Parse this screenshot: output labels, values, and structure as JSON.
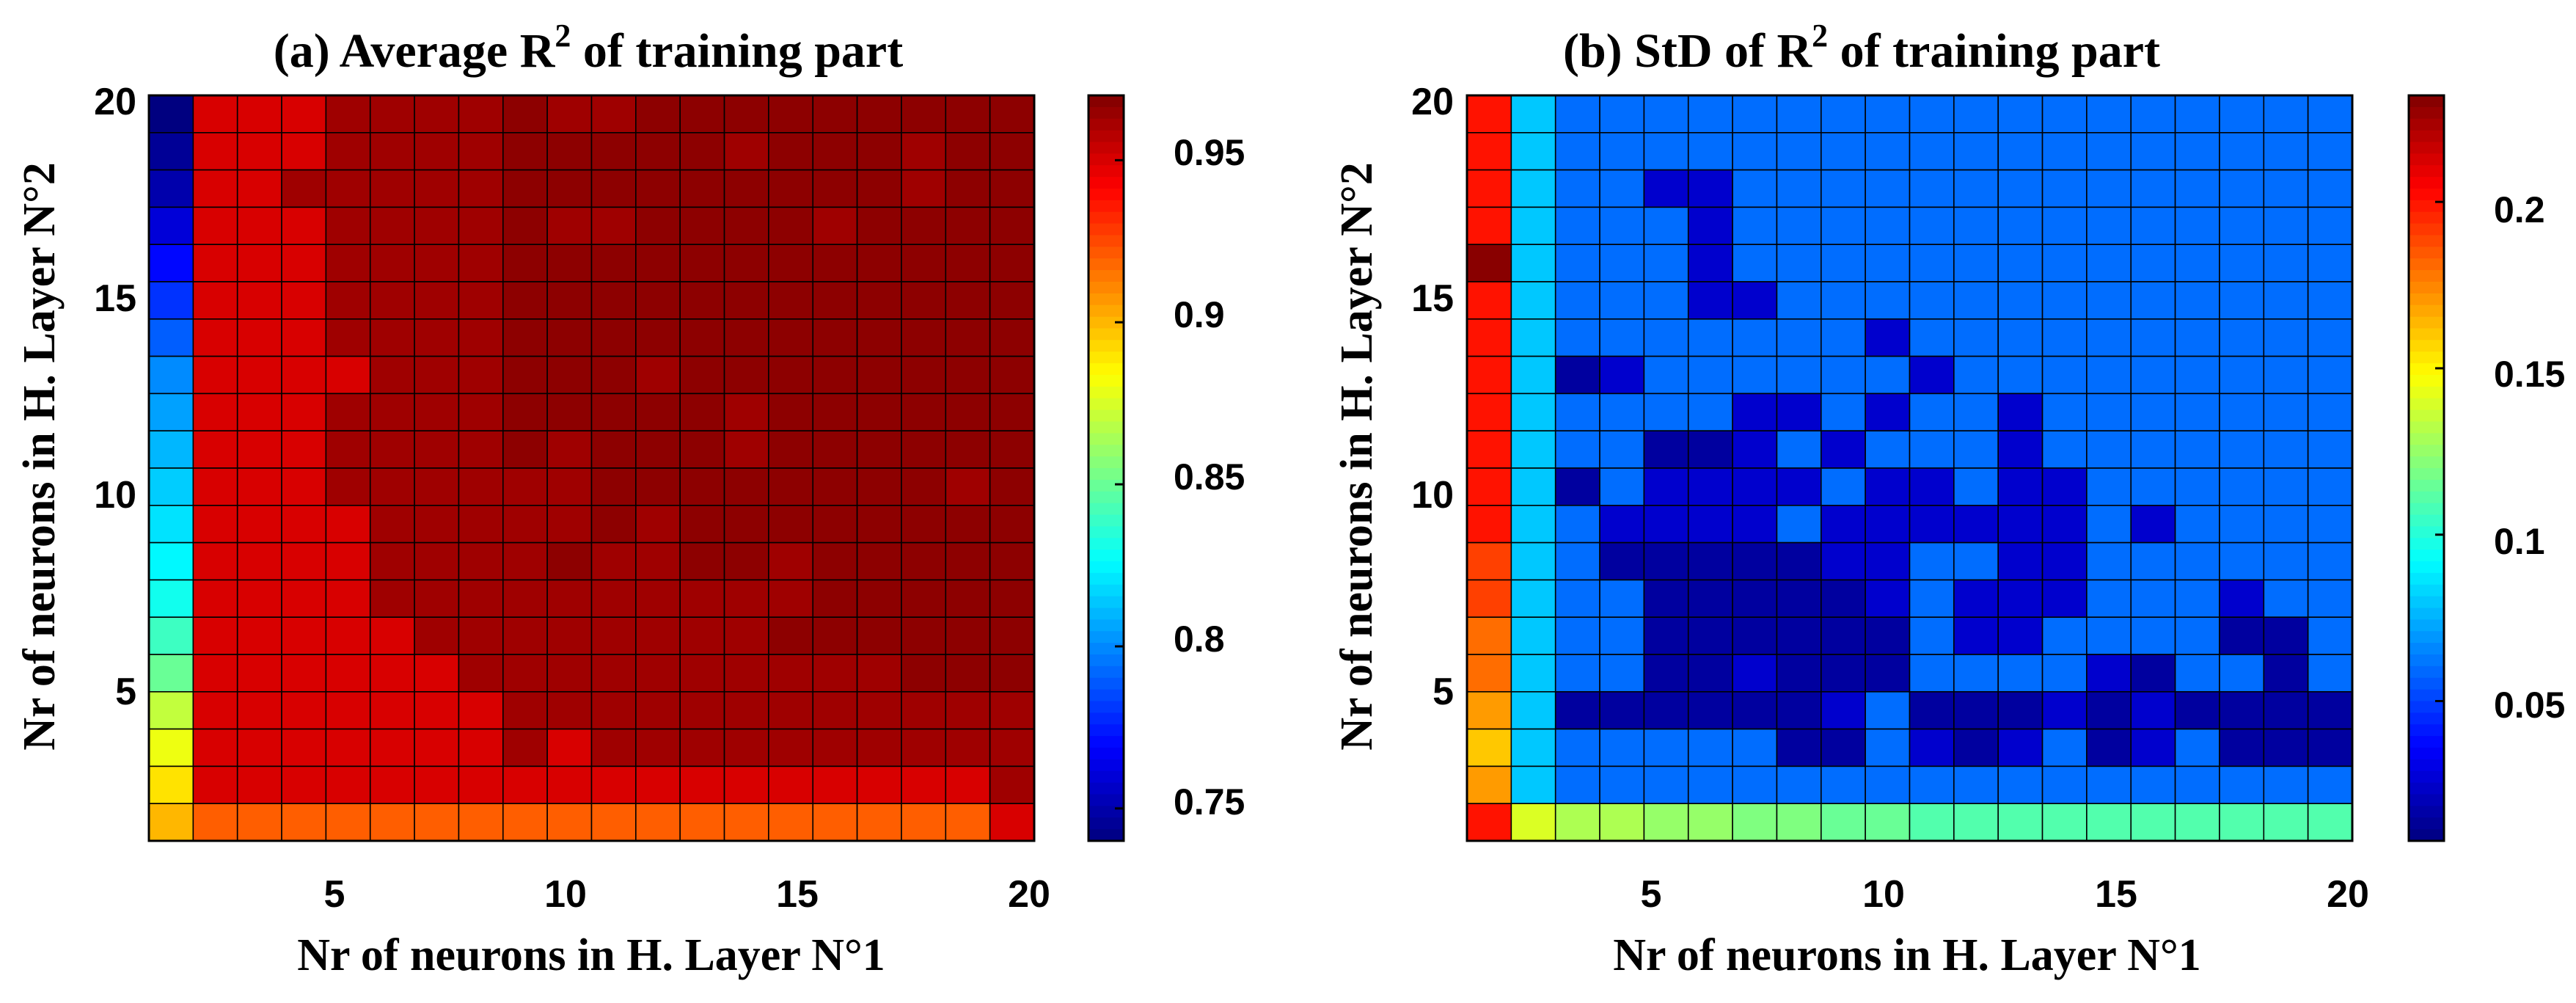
{
  "chart_data": [
    {
      "type": "heatmap",
      "title_main": "(a) Average R",
      "title_sup": "2",
      "title_tail": " of training part",
      "xlabel": "Nr of neurons in H. Layer N°1",
      "ylabel": "Nr of neurons in H. Layer N°2",
      "x_ticks": [
        "5",
        "10",
        "15",
        "20"
      ],
      "y_ticks": [
        "5",
        "10",
        "15",
        "20"
      ],
      "x_range": [
        1,
        20
      ],
      "y_range": [
        1,
        20
      ],
      "grid": true,
      "colormap": "jet",
      "colorbar": {
        "range": [
          0.74,
          0.97
        ],
        "ticks": [
          0.75,
          0.8,
          0.85,
          0.9,
          0.95
        ],
        "tick_labels": [
          "0.75",
          "0.8",
          "0.85",
          "0.9",
          "0.95"
        ]
      },
      "rows_top_to_bottom": [
        [
          0.74,
          0.95,
          0.95,
          0.95,
          0.963,
          0.963,
          0.963,
          0.963,
          0.967,
          0.963,
          0.963,
          0.967,
          0.967,
          0.967,
          0.967,
          0.967,
          0.967,
          0.967,
          0.967,
          0.967
        ],
        [
          0.745,
          0.95,
          0.95,
          0.95,
          0.963,
          0.963,
          0.963,
          0.963,
          0.967,
          0.967,
          0.967,
          0.967,
          0.967,
          0.963,
          0.967,
          0.967,
          0.967,
          0.963,
          0.967,
          0.967
        ],
        [
          0.75,
          0.95,
          0.95,
          0.963,
          0.963,
          0.963,
          0.963,
          0.963,
          0.967,
          0.967,
          0.967,
          0.967,
          0.967,
          0.967,
          0.967,
          0.967,
          0.967,
          0.963,
          0.967,
          0.967
        ],
        [
          0.76,
          0.95,
          0.95,
          0.95,
          0.963,
          0.963,
          0.963,
          0.963,
          0.967,
          0.963,
          0.963,
          0.967,
          0.967,
          0.967,
          0.967,
          0.963,
          0.967,
          0.967,
          0.967,
          0.967
        ],
        [
          0.77,
          0.95,
          0.95,
          0.95,
          0.963,
          0.963,
          0.963,
          0.963,
          0.967,
          0.967,
          0.967,
          0.967,
          0.967,
          0.967,
          0.967,
          0.967,
          0.967,
          0.967,
          0.967,
          0.967
        ],
        [
          0.78,
          0.95,
          0.95,
          0.95,
          0.963,
          0.963,
          0.963,
          0.963,
          0.967,
          0.967,
          0.967,
          0.967,
          0.967,
          0.967,
          0.967,
          0.967,
          0.967,
          0.967,
          0.967,
          0.967
        ],
        [
          0.79,
          0.95,
          0.95,
          0.95,
          0.963,
          0.963,
          0.963,
          0.963,
          0.967,
          0.967,
          0.967,
          0.967,
          0.967,
          0.967,
          0.967,
          0.967,
          0.967,
          0.967,
          0.967,
          0.967
        ],
        [
          0.8,
          0.95,
          0.95,
          0.95,
          0.95,
          0.963,
          0.963,
          0.963,
          0.967,
          0.967,
          0.967,
          0.963,
          0.967,
          0.967,
          0.967,
          0.967,
          0.967,
          0.967,
          0.967,
          0.967
        ],
        [
          0.805,
          0.95,
          0.95,
          0.95,
          0.963,
          0.963,
          0.963,
          0.963,
          0.967,
          0.967,
          0.967,
          0.967,
          0.967,
          0.963,
          0.967,
          0.967,
          0.967,
          0.967,
          0.967,
          0.967
        ],
        [
          0.81,
          0.95,
          0.95,
          0.95,
          0.963,
          0.963,
          0.963,
          0.963,
          0.967,
          0.963,
          0.967,
          0.967,
          0.967,
          0.963,
          0.967,
          0.967,
          0.967,
          0.967,
          0.967,
          0.967
        ],
        [
          0.815,
          0.95,
          0.95,
          0.95,
          0.963,
          0.963,
          0.963,
          0.963,
          0.963,
          0.963,
          0.967,
          0.967,
          0.967,
          0.967,
          0.967,
          0.967,
          0.967,
          0.967,
          0.963,
          0.967
        ],
        [
          0.82,
          0.95,
          0.95,
          0.95,
          0.95,
          0.963,
          0.963,
          0.963,
          0.963,
          0.963,
          0.967,
          0.963,
          0.967,
          0.967,
          0.967,
          0.967,
          0.967,
          0.967,
          0.967,
          0.967
        ],
        [
          0.825,
          0.95,
          0.95,
          0.95,
          0.95,
          0.963,
          0.963,
          0.963,
          0.963,
          0.967,
          0.963,
          0.963,
          0.967,
          0.967,
          0.963,
          0.967,
          0.967,
          0.967,
          0.967,
          0.967
        ],
        [
          0.83,
          0.95,
          0.95,
          0.95,
          0.95,
          0.963,
          0.963,
          0.963,
          0.963,
          0.963,
          0.963,
          0.963,
          0.963,
          0.963,
          0.963,
          0.967,
          0.967,
          0.967,
          0.967,
          0.967
        ],
        [
          0.84,
          0.95,
          0.95,
          0.95,
          0.95,
          0.95,
          0.963,
          0.963,
          0.963,
          0.963,
          0.963,
          0.963,
          0.963,
          0.963,
          0.967,
          0.967,
          0.967,
          0.967,
          0.967,
          0.967
        ],
        [
          0.85,
          0.95,
          0.95,
          0.95,
          0.95,
          0.95,
          0.95,
          0.963,
          0.963,
          0.963,
          0.963,
          0.963,
          0.963,
          0.963,
          0.963,
          0.963,
          0.963,
          0.967,
          0.967,
          0.967
        ],
        [
          0.87,
          0.95,
          0.95,
          0.95,
          0.95,
          0.95,
          0.95,
          0.95,
          0.963,
          0.963,
          0.963,
          0.963,
          0.963,
          0.963,
          0.963,
          0.963,
          0.963,
          0.963,
          0.963,
          0.963
        ],
        [
          0.88,
          0.95,
          0.95,
          0.95,
          0.95,
          0.95,
          0.95,
          0.95,
          0.963,
          0.95,
          0.963,
          0.963,
          0.963,
          0.963,
          0.963,
          0.963,
          0.963,
          0.963,
          0.963,
          0.963
        ],
        [
          0.89,
          0.95,
          0.95,
          0.95,
          0.95,
          0.95,
          0.95,
          0.95,
          0.95,
          0.95,
          0.95,
          0.95,
          0.95,
          0.95,
          0.95,
          0.95,
          0.95,
          0.95,
          0.95,
          0.963
        ],
        [
          0.9,
          0.92,
          0.92,
          0.92,
          0.92,
          0.92,
          0.92,
          0.92,
          0.92,
          0.92,
          0.92,
          0.92,
          0.92,
          0.92,
          0.92,
          0.92,
          0.92,
          0.92,
          0.92,
          0.95
        ]
      ]
    },
    {
      "type": "heatmap",
      "title_main": "(b) StD of R",
      "title_sup": "2",
      "title_tail": " of training part",
      "xlabel": "Nr of neurons in H. Layer N°1",
      "ylabel": "Nr of neurons in H. Layer N°2",
      "x_ticks": [
        "5",
        "10",
        "15",
        "20"
      ],
      "y_ticks": [
        "5",
        "10",
        "15",
        "20"
      ],
      "x_range": [
        1,
        20
      ],
      "y_range": [
        1,
        20
      ],
      "grid": true,
      "colormap": "jet",
      "colorbar": {
        "range": [
          0.008,
          0.232
        ],
        "ticks": [
          0.05,
          0.1,
          0.15,
          0.2
        ],
        "tick_labels": [
          "0.05",
          "0.1",
          "0.15",
          "0.2"
        ]
      },
      "rows_top_to_bottom": [
        [
          0.2,
          0.08,
          0.06,
          0.06,
          0.06,
          0.06,
          0.06,
          0.06,
          0.06,
          0.06,
          0.06,
          0.06,
          0.06,
          0.06,
          0.06,
          0.06,
          0.06,
          0.06,
          0.06,
          0.06
        ],
        [
          0.2,
          0.08,
          0.06,
          0.06,
          0.06,
          0.06,
          0.06,
          0.06,
          0.06,
          0.06,
          0.06,
          0.06,
          0.06,
          0.06,
          0.06,
          0.06,
          0.06,
          0.06,
          0.06,
          0.06
        ],
        [
          0.2,
          0.08,
          0.06,
          0.06,
          0.025,
          0.025,
          0.06,
          0.06,
          0.06,
          0.06,
          0.06,
          0.06,
          0.06,
          0.06,
          0.06,
          0.06,
          0.06,
          0.06,
          0.06,
          0.06
        ],
        [
          0.2,
          0.08,
          0.06,
          0.06,
          0.06,
          0.025,
          0.06,
          0.06,
          0.06,
          0.06,
          0.06,
          0.06,
          0.06,
          0.06,
          0.06,
          0.06,
          0.06,
          0.06,
          0.06,
          0.06
        ],
        [
          0.23,
          0.08,
          0.06,
          0.06,
          0.06,
          0.025,
          0.06,
          0.06,
          0.06,
          0.06,
          0.06,
          0.06,
          0.06,
          0.06,
          0.06,
          0.06,
          0.06,
          0.06,
          0.06,
          0.06
        ],
        [
          0.2,
          0.08,
          0.06,
          0.06,
          0.06,
          0.025,
          0.025,
          0.06,
          0.06,
          0.06,
          0.06,
          0.06,
          0.06,
          0.06,
          0.06,
          0.06,
          0.06,
          0.06,
          0.06,
          0.06
        ],
        [
          0.2,
          0.08,
          0.06,
          0.06,
          0.06,
          0.06,
          0.06,
          0.06,
          0.06,
          0.025,
          0.06,
          0.06,
          0.06,
          0.06,
          0.06,
          0.06,
          0.06,
          0.06,
          0.06,
          0.06
        ],
        [
          0.2,
          0.08,
          0.015,
          0.025,
          0.06,
          0.06,
          0.06,
          0.06,
          0.06,
          0.06,
          0.025,
          0.06,
          0.06,
          0.06,
          0.06,
          0.06,
          0.06,
          0.06,
          0.06,
          0.06
        ],
        [
          0.2,
          0.08,
          0.06,
          0.06,
          0.06,
          0.06,
          0.025,
          0.025,
          0.06,
          0.025,
          0.06,
          0.06,
          0.025,
          0.06,
          0.06,
          0.06,
          0.06,
          0.06,
          0.06,
          0.06
        ],
        [
          0.2,
          0.08,
          0.06,
          0.06,
          0.015,
          0.015,
          0.025,
          0.06,
          0.025,
          0.06,
          0.06,
          0.06,
          0.025,
          0.06,
          0.06,
          0.06,
          0.06,
          0.06,
          0.06,
          0.06
        ],
        [
          0.2,
          0.08,
          0.015,
          0.06,
          0.025,
          0.025,
          0.025,
          0.025,
          0.06,
          0.025,
          0.025,
          0.06,
          0.025,
          0.025,
          0.06,
          0.06,
          0.06,
          0.06,
          0.06,
          0.06
        ],
        [
          0.2,
          0.08,
          0.06,
          0.025,
          0.025,
          0.025,
          0.025,
          0.06,
          0.025,
          0.025,
          0.025,
          0.025,
          0.025,
          0.025,
          0.06,
          0.025,
          0.06,
          0.06,
          0.06,
          0.06
        ],
        [
          0.19,
          0.08,
          0.06,
          0.015,
          0.015,
          0.015,
          0.015,
          0.015,
          0.025,
          0.025,
          0.06,
          0.06,
          0.025,
          0.025,
          0.06,
          0.06,
          0.06,
          0.06,
          0.06,
          0.06
        ],
        [
          0.19,
          0.08,
          0.06,
          0.06,
          0.015,
          0.015,
          0.015,
          0.015,
          0.015,
          0.025,
          0.06,
          0.025,
          0.025,
          0.025,
          0.06,
          0.06,
          0.06,
          0.025,
          0.06,
          0.06
        ],
        [
          0.18,
          0.08,
          0.06,
          0.06,
          0.015,
          0.015,
          0.015,
          0.015,
          0.015,
          0.015,
          0.06,
          0.025,
          0.025,
          0.06,
          0.06,
          0.06,
          0.06,
          0.015,
          0.015,
          0.06
        ],
        [
          0.18,
          0.08,
          0.06,
          0.06,
          0.015,
          0.015,
          0.025,
          0.015,
          0.015,
          0.015,
          0.06,
          0.06,
          0.06,
          0.06,
          0.025,
          0.015,
          0.06,
          0.06,
          0.015,
          0.06
        ],
        [
          0.17,
          0.08,
          0.015,
          0.015,
          0.015,
          0.015,
          0.015,
          0.015,
          0.025,
          0.06,
          0.015,
          0.015,
          0.015,
          0.025,
          0.015,
          0.025,
          0.015,
          0.015,
          0.015,
          0.015
        ],
        [
          0.16,
          0.08,
          0.06,
          0.06,
          0.06,
          0.06,
          0.06,
          0.015,
          0.015,
          0.06,
          0.025,
          0.015,
          0.025,
          0.06,
          0.015,
          0.025,
          0.06,
          0.015,
          0.015,
          0.015
        ],
        [
          0.17,
          0.08,
          0.06,
          0.06,
          0.06,
          0.06,
          0.06,
          0.06,
          0.06,
          0.06,
          0.06,
          0.06,
          0.06,
          0.06,
          0.06,
          0.06,
          0.06,
          0.06,
          0.06,
          0.06
        ],
        [
          0.2,
          0.14,
          0.13,
          0.13,
          0.125,
          0.125,
          0.12,
          0.12,
          0.115,
          0.115,
          0.11,
          0.11,
          0.11,
          0.11,
          0.11,
          0.11,
          0.11,
          0.11,
          0.11,
          0.11
        ]
      ]
    }
  ]
}
